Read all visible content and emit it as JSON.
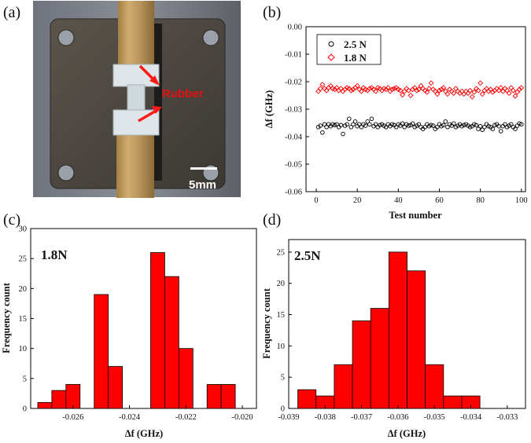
{
  "panel_labels": [
    "(a)",
    "(b)",
    "(c)",
    "(d)"
  ],
  "photo": {
    "material_label": "Rubber",
    "scale_label": "5mm"
  },
  "colors": {
    "red": "#ff0000",
    "black": "#000000",
    "photo_bg": "#7a7e88",
    "plate": "#4a4640",
    "bamboo": "#b8955c"
  },
  "chart_data": [
    {
      "id": "b",
      "type": "scatter",
      "title": "",
      "xlabel": "Test number",
      "ylabel": "Δf (GHz)",
      "xlim": [
        -5,
        102
      ],
      "ylim": [
        -0.06,
        0.0
      ],
      "xticks": [
        "0",
        "20",
        "40",
        "60",
        "80",
        "100"
      ],
      "yticks": [
        "-0.06",
        "-0.05",
        "-0.04",
        "-0.03",
        "-0.02",
        "-0.01",
        "0.00"
      ],
      "legend": {
        "position": "top-left"
      },
      "series": [
        {
          "name": "2.5 N",
          "marker": "circle",
          "color": "#000000",
          "x": [
            1,
            2,
            3,
            4,
            5,
            6,
            7,
            8,
            9,
            10,
            11,
            12,
            13,
            14,
            15,
            16,
            17,
            18,
            19,
            20,
            21,
            22,
            23,
            24,
            25,
            26,
            27,
            28,
            29,
            30,
            31,
            32,
            33,
            34,
            35,
            36,
            37,
            38,
            39,
            40,
            41,
            42,
            43,
            44,
            45,
            46,
            47,
            48,
            49,
            50,
            51,
            52,
            53,
            54,
            55,
            56,
            57,
            58,
            59,
            60,
            61,
            62,
            63,
            64,
            65,
            66,
            67,
            68,
            69,
            70,
            71,
            72,
            73,
            74,
            75,
            76,
            77,
            78,
            79,
            80,
            81,
            82,
            83,
            84,
            85,
            86,
            87,
            88,
            89,
            90,
            91,
            92,
            93,
            94,
            95,
            96,
            97,
            98,
            99,
            100
          ],
          "y": [
            -0.0365,
            -0.036,
            -0.0385,
            -0.0355,
            -0.0365,
            -0.0355,
            -0.0362,
            -0.0355,
            -0.0358,
            -0.0355,
            -0.0365,
            -0.0358,
            -0.039,
            -0.036,
            -0.0355,
            -0.0335,
            -0.0365,
            -0.0355,
            -0.0345,
            -0.0362,
            -0.0355,
            -0.0365,
            -0.0355,
            -0.036,
            -0.0345,
            -0.0355,
            -0.0335,
            -0.0362,
            -0.0355,
            -0.0365,
            -0.0358,
            -0.0355,
            -0.036,
            -0.0365,
            -0.0355,
            -0.0362,
            -0.0355,
            -0.0358,
            -0.0365,
            -0.0355,
            -0.036,
            -0.0352,
            -0.0365,
            -0.0355,
            -0.036,
            -0.0358,
            -0.0352,
            -0.0365,
            -0.036,
            -0.0355,
            -0.0365,
            -0.0372,
            -0.0365,
            -0.0355,
            -0.0362,
            -0.0358,
            -0.036,
            -0.0372,
            -0.0365,
            -0.0355,
            -0.0362,
            -0.0358,
            -0.0345,
            -0.0365,
            -0.0355,
            -0.036,
            -0.0352,
            -0.0365,
            -0.036,
            -0.0355,
            -0.0362,
            -0.0358,
            -0.0355,
            -0.036,
            -0.0365,
            -0.0362,
            -0.0355,
            -0.0358,
            -0.0372,
            -0.0362,
            -0.0375,
            -0.0365,
            -0.0355,
            -0.0362,
            -0.0365,
            -0.0372,
            -0.0358,
            -0.0355,
            -0.0362,
            -0.038,
            -0.0362,
            -0.0355,
            -0.0365,
            -0.036,
            -0.0355,
            -0.0365,
            -0.0372,
            -0.036,
            -0.0352,
            -0.0355
          ]
        },
        {
          "name": "1.8 N",
          "marker": "diamond",
          "color": "#ff0000",
          "x": [
            1,
            2,
            3,
            4,
            5,
            6,
            7,
            8,
            9,
            10,
            11,
            12,
            13,
            14,
            15,
            16,
            17,
            18,
            19,
            20,
            21,
            22,
            23,
            24,
            25,
            26,
            27,
            28,
            29,
            30,
            31,
            32,
            33,
            34,
            35,
            36,
            37,
            38,
            39,
            40,
            41,
            42,
            43,
            44,
            45,
            46,
            47,
            48,
            49,
            50,
            51,
            52,
            53,
            54,
            55,
            56,
            57,
            58,
            59,
            60,
            61,
            62,
            63,
            64,
            65,
            66,
            67,
            68,
            69,
            70,
            71,
            72,
            73,
            74,
            75,
            76,
            77,
            78,
            79,
            80,
            81,
            82,
            83,
            84,
            85,
            86,
            87,
            88,
            89,
            90,
            91,
            92,
            93,
            94,
            95,
            96,
            97,
            98,
            99,
            100
          ],
          "y": [
            -0.0235,
            -0.0225,
            -0.021,
            -0.0225,
            -0.0232,
            -0.0222,
            -0.0215,
            -0.0225,
            -0.0228,
            -0.0222,
            -0.0232,
            -0.0225,
            -0.0235,
            -0.0228,
            -0.0222,
            -0.0225,
            -0.0232,
            -0.0228,
            -0.0222,
            -0.0215,
            -0.0228,
            -0.0235,
            -0.0222,
            -0.0228,
            -0.0232,
            -0.0225,
            -0.0222,
            -0.0228,
            -0.0235,
            -0.0222,
            -0.0225,
            -0.0232,
            -0.0225,
            -0.0228,
            -0.0222,
            -0.0235,
            -0.0228,
            -0.0225,
            -0.0222,
            -0.0228,
            -0.0232,
            -0.0248,
            -0.0235,
            -0.0225,
            -0.0232,
            -0.025,
            -0.0228,
            -0.0222,
            -0.0232,
            -0.0228,
            -0.0215,
            -0.0225,
            -0.0232,
            -0.0238,
            -0.0225,
            -0.0205,
            -0.0228,
            -0.0235,
            -0.0245,
            -0.0232,
            -0.0228,
            -0.0222,
            -0.0235,
            -0.0245,
            -0.0228,
            -0.0235,
            -0.0242,
            -0.0225,
            -0.0235,
            -0.0242,
            -0.0235,
            -0.0245,
            -0.0235,
            -0.0242,
            -0.0232,
            -0.0255,
            -0.0238,
            -0.0225,
            -0.0232,
            -0.0205,
            -0.0245,
            -0.0232,
            -0.0225,
            -0.0235,
            -0.0228,
            -0.0238,
            -0.0232,
            -0.0225,
            -0.0232,
            -0.0222,
            -0.0235,
            -0.0225,
            -0.0232,
            -0.0242,
            -0.0222,
            -0.0232,
            -0.0252,
            -0.0238,
            -0.0228,
            -0.0222
          ]
        }
      ]
    },
    {
      "id": "c",
      "type": "bar",
      "annotation": "1.8N",
      "xlabel": "Δf (GHz)",
      "ylabel": "Frequency count",
      "xlim": [
        -0.0275,
        -0.0195
      ],
      "ylim": [
        0,
        30
      ],
      "xticks": [
        "-0.026",
        "-0.024",
        "-0.022",
        "-0.020"
      ],
      "yticks": [
        "0",
        "5",
        "10",
        "15",
        "20",
        "25",
        "30"
      ],
      "bin_width": 0.0005,
      "bin_centers": [
        -0.027,
        -0.0265,
        -0.026,
        -0.0255,
        -0.025,
        -0.0245,
        -0.024,
        -0.0235,
        -0.023,
        -0.0225,
        -0.022,
        -0.0215,
        -0.021,
        -0.0205,
        -0.02
      ],
      "values": [
        1,
        3,
        4,
        0,
        19,
        7,
        0,
        0,
        26,
        22,
        10,
        0,
        4,
        4,
        0
      ]
    },
    {
      "id": "d",
      "type": "bar",
      "annotation": "2.5N",
      "xlabel": "Δf (GHz)",
      "ylabel": "Frequency count",
      "xlim": [
        -0.039,
        -0.0325
      ],
      "ylim": [
        0,
        27
      ],
      "xticks": [
        "-0.039",
        "-0.038",
        "-0.037",
        "-0.036",
        "-0.035",
        "-0.034",
        "-0.033"
      ],
      "yticks": [
        "0",
        "5",
        "10",
        "15",
        "20",
        "25"
      ],
      "bin_width": 0.0005,
      "bin_centers": [
        -0.0385,
        -0.038,
        -0.0375,
        -0.037,
        -0.0365,
        -0.036,
        -0.0355,
        -0.035,
        -0.0345,
        -0.034,
        -0.0335,
        -0.033
      ],
      "values": [
        3,
        2,
        7,
        14,
        16,
        25,
        22,
        7,
        2,
        2,
        0,
        0
      ]
    }
  ]
}
